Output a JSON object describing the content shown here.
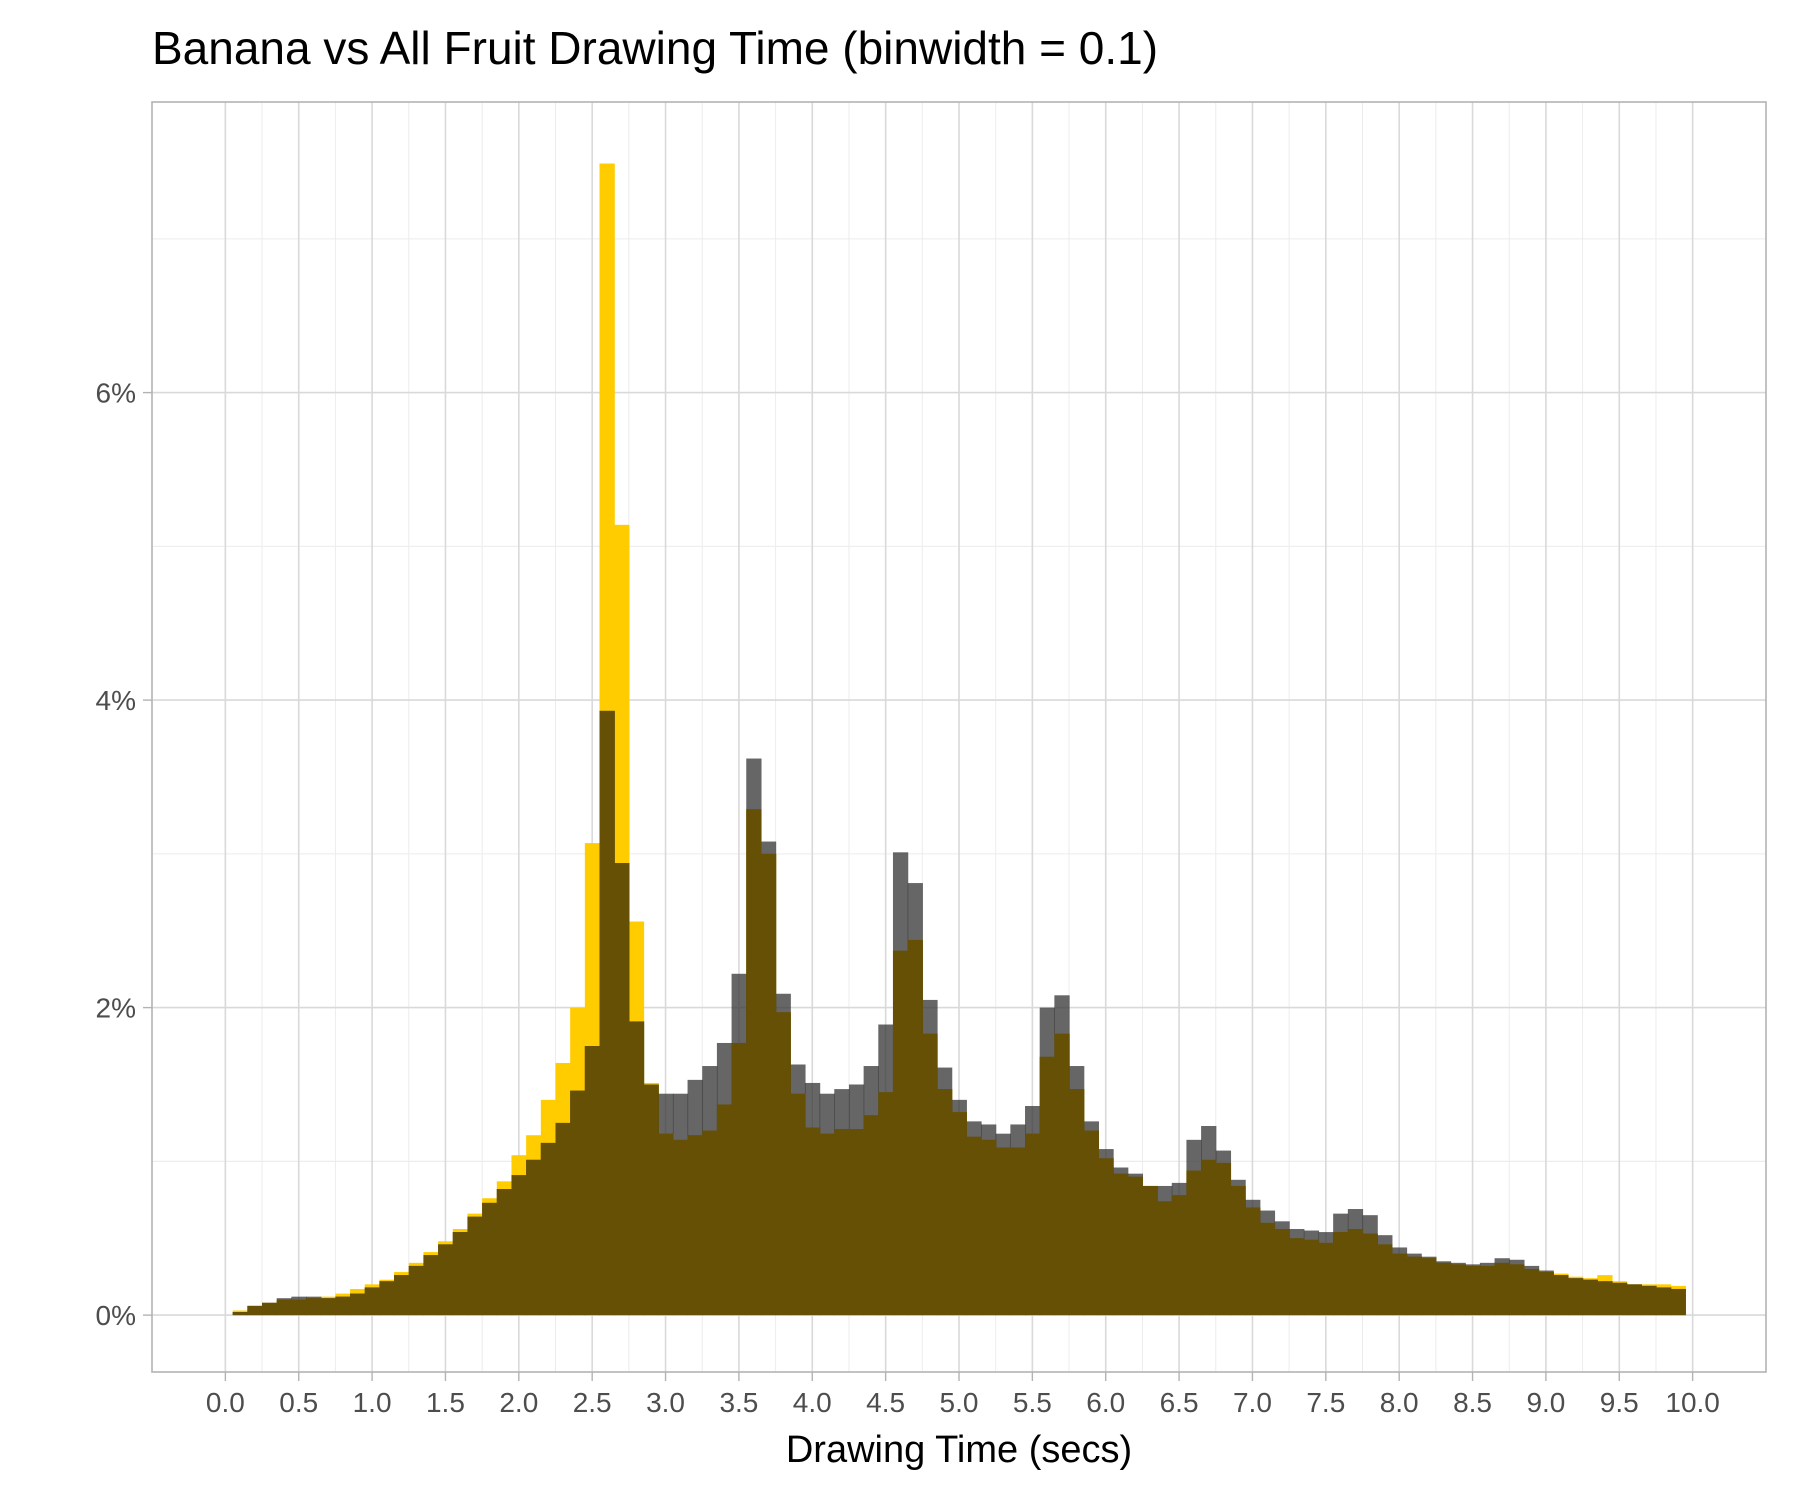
{
  "chart_data": {
    "type": "bar",
    "title": "Banana vs All Fruit Drawing Time (binwidth = 0.1)",
    "xlabel": "Drawing Time (secs)",
    "ylabel": "",
    "binwidth": 0.1,
    "xlim": [
      -0.5,
      10.5
    ],
    "ylim": [
      -0.37,
      7.89
    ],
    "x_ticks": [
      "0.0",
      "0.5",
      "1.0",
      "1.5",
      "2.0",
      "2.5",
      "3.0",
      "3.5",
      "4.0",
      "4.5",
      "5.0",
      "5.5",
      "6.0",
      "6.5",
      "7.0",
      "7.5",
      "8.0",
      "8.5",
      "9.0",
      "9.5",
      "10.0"
    ],
    "y_ticks": [
      "0%",
      "2%",
      "4%",
      "6%"
    ],
    "grid": true,
    "colors": {
      "banana": "#ffcc00",
      "all_fruit": "#333333",
      "overlap": "#665005"
    },
    "bin_centers": [
      0.1,
      0.2,
      0.3,
      0.4,
      0.5,
      0.6,
      0.7,
      0.8,
      0.9,
      1.0,
      1.1,
      1.2,
      1.3,
      1.4,
      1.5,
      1.6,
      1.7,
      1.8,
      1.9,
      2.0,
      2.1,
      2.2,
      2.3,
      2.4,
      2.5,
      2.6,
      2.7,
      2.8,
      2.9,
      3.0,
      3.1,
      3.2,
      3.3,
      3.4,
      3.5,
      3.6,
      3.7,
      3.8,
      3.9,
      4.0,
      4.1,
      4.2,
      4.3,
      4.4,
      4.5,
      4.6,
      4.7,
      4.8,
      4.9,
      5.0,
      5.1,
      5.2,
      5.3,
      5.4,
      5.5,
      5.6,
      5.7,
      5.8,
      5.9,
      6.0,
      6.1,
      6.2,
      6.3,
      6.4,
      6.5,
      6.6,
      6.7,
      6.8,
      6.9,
      7.0,
      7.1,
      7.2,
      7.3,
      7.4,
      7.5,
      7.6,
      7.7,
      7.8,
      7.9,
      8.0,
      8.1,
      8.2,
      8.3,
      8.4,
      8.5,
      8.6,
      8.7,
      8.8,
      8.9,
      9.0,
      9.1,
      9.2,
      9.3,
      9.4,
      9.5,
      9.6,
      9.7,
      9.8,
      9.9
    ],
    "series": [
      {
        "key": "banana",
        "values": [
          0.03,
          0.06,
          0.08,
          0.1,
          0.1,
          0.11,
          0.12,
          0.14,
          0.17,
          0.2,
          0.23,
          0.28,
          0.34,
          0.41,
          0.48,
          0.56,
          0.66,
          0.76,
          0.87,
          1.04,
          1.17,
          1.4,
          1.64,
          2.0,
          3.07,
          7.49,
          5.14,
          2.56,
          1.51,
          1.18,
          1.14,
          1.17,
          1.2,
          1.37,
          1.77,
          3.29,
          3.0,
          1.97,
          1.44,
          1.22,
          1.18,
          1.21,
          1.21,
          1.3,
          1.45,
          2.37,
          2.44,
          1.83,
          1.47,
          1.32,
          1.16,
          1.14,
          1.09,
          1.09,
          1.18,
          1.68,
          1.83,
          1.47,
          1.2,
          1.02,
          0.92,
          0.9,
          0.84,
          0.74,
          0.78,
          0.94,
          1.01,
          0.99,
          0.84,
          0.7,
          0.6,
          0.56,
          0.5,
          0.49,
          0.47,
          0.54,
          0.56,
          0.53,
          0.46,
          0.4,
          0.38,
          0.37,
          0.34,
          0.33,
          0.32,
          0.32,
          0.34,
          0.33,
          0.3,
          0.28,
          0.27,
          0.25,
          0.24,
          0.26,
          0.22,
          0.2,
          0.2,
          0.2,
          0.19
        ]
      },
      {
        "key": "all_fruit",
        "values": [
          0.02,
          0.06,
          0.08,
          0.11,
          0.12,
          0.12,
          0.11,
          0.12,
          0.14,
          0.18,
          0.22,
          0.26,
          0.32,
          0.39,
          0.46,
          0.54,
          0.64,
          0.73,
          0.82,
          0.91,
          1.01,
          1.12,
          1.25,
          1.46,
          1.75,
          3.93,
          2.94,
          1.91,
          1.5,
          1.44,
          1.44,
          1.53,
          1.62,
          1.77,
          2.22,
          3.62,
          3.08,
          2.09,
          1.63,
          1.51,
          1.44,
          1.47,
          1.5,
          1.62,
          1.89,
          3.01,
          2.81,
          2.05,
          1.61,
          1.4,
          1.26,
          1.24,
          1.18,
          1.24,
          1.36,
          2.0,
          2.08,
          1.62,
          1.26,
          1.08,
          0.96,
          0.92,
          0.84,
          0.84,
          0.86,
          1.14,
          1.23,
          1.07,
          0.88,
          0.75,
          0.68,
          0.61,
          0.56,
          0.55,
          0.54,
          0.66,
          0.69,
          0.65,
          0.52,
          0.44,
          0.4,
          0.38,
          0.35,
          0.34,
          0.33,
          0.34,
          0.37,
          0.36,
          0.32,
          0.29,
          0.26,
          0.24,
          0.23,
          0.22,
          0.21,
          0.2,
          0.19,
          0.18,
          0.17
        ]
      }
    ]
  }
}
